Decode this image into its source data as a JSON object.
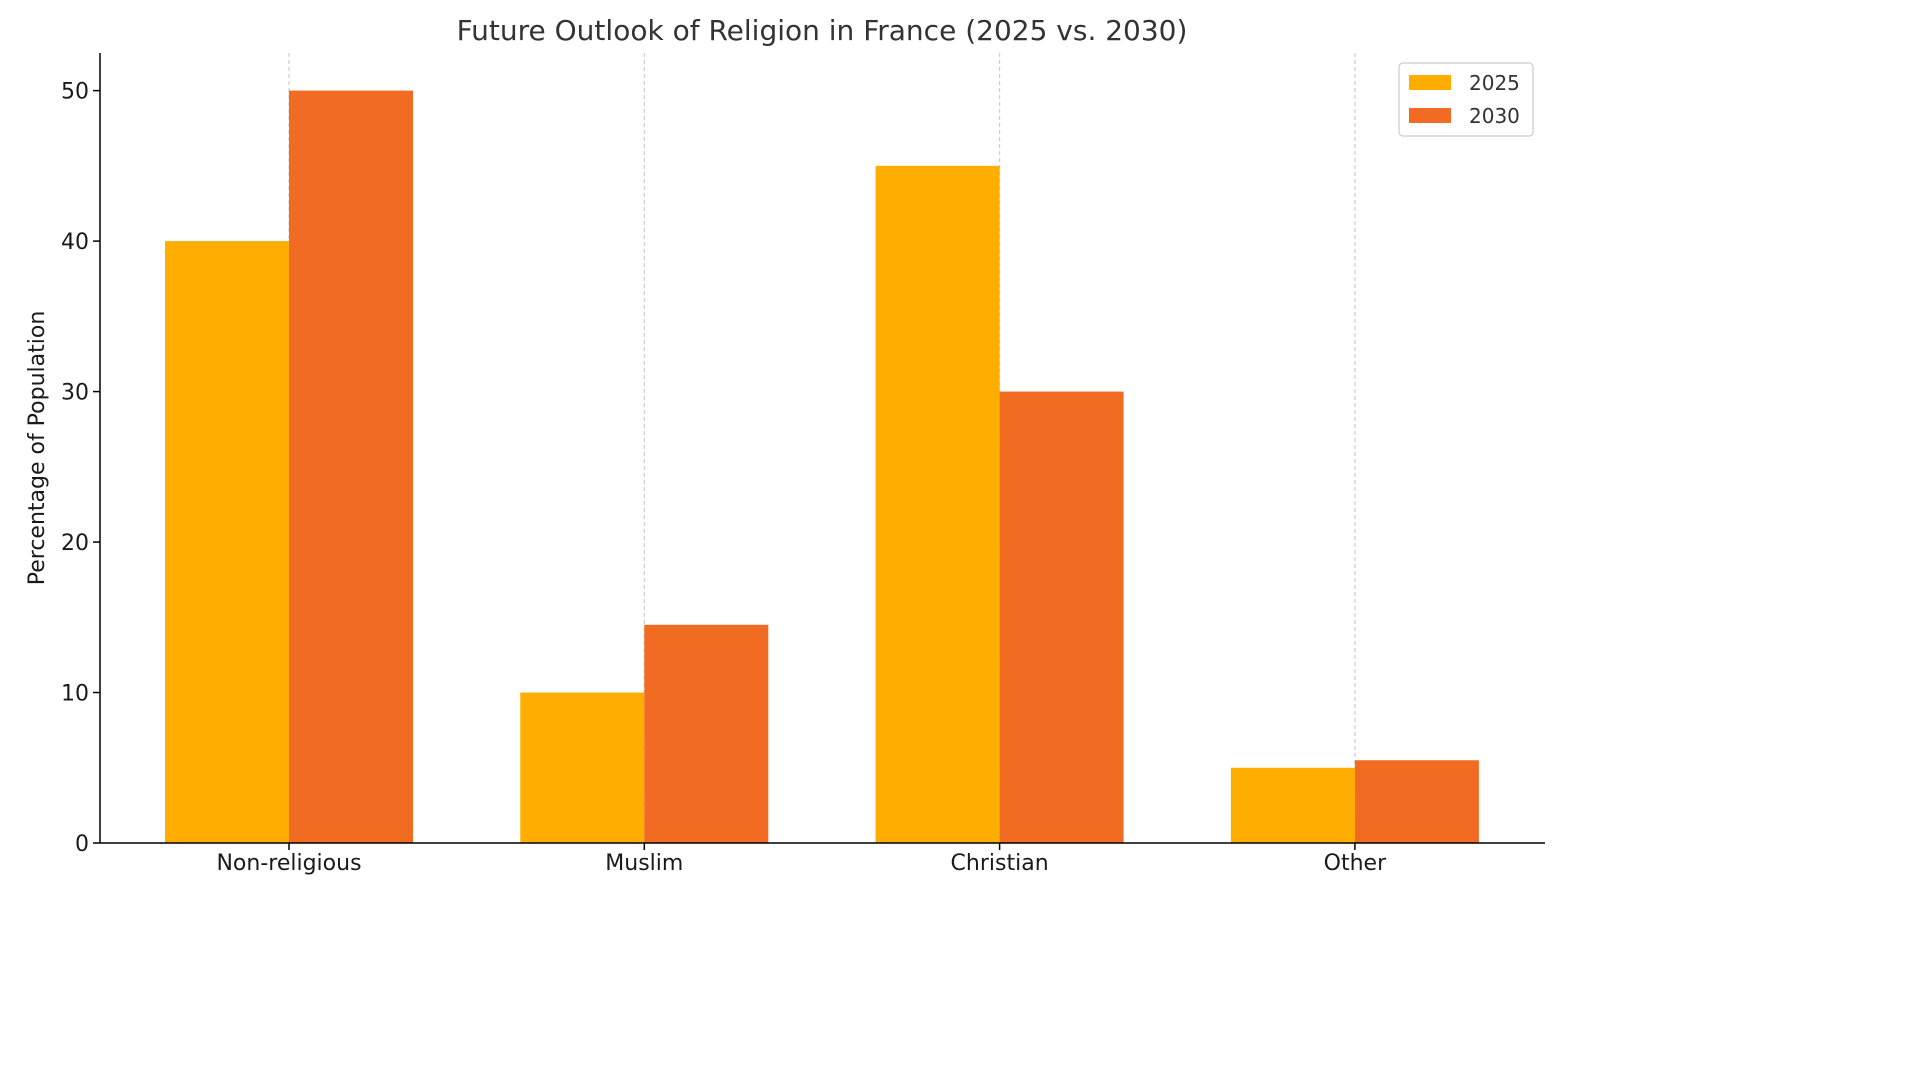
{
  "chart_data": {
    "type": "bar",
    "title": "Future Outlook of Religion in France (2025 vs. 2030)",
    "xlabel": "",
    "ylabel": "Percentage of Population",
    "categories": [
      "Non-religious",
      "Muslim",
      "Christian",
      "Other"
    ],
    "series": [
      {
        "name": "2025",
        "color": "#FFAE00",
        "values": [
          40,
          10,
          45,
          5
        ]
      },
      {
        "name": "2030",
        "color": "#F26B22",
        "values": [
          50,
          14.5,
          30,
          5.5
        ]
      }
    ],
    "ylim": [
      0,
      52.5
    ],
    "yticks": [
      0,
      10,
      20,
      30,
      40,
      50
    ],
    "grid": "vertical dashed at categories",
    "legend": "top-right"
  }
}
